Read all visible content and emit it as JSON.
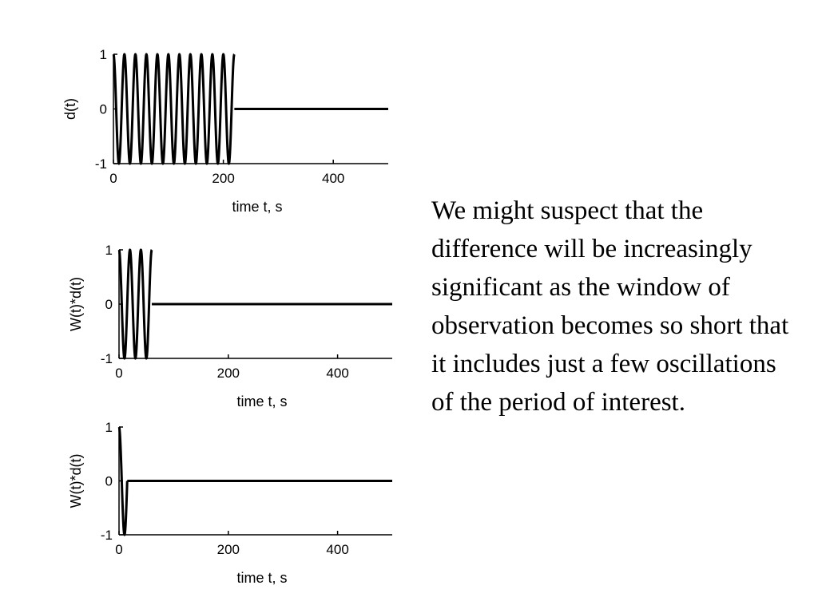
{
  "chart_data": [
    {
      "type": "line",
      "title": "",
      "xlabel": "time t, s",
      "ylabel": "d(t)",
      "xlim": [
        0,
        500
      ],
      "ylim": [
        -1,
        1
      ],
      "xticks": [
        0,
        200,
        400
      ],
      "yticks": [
        -1,
        0,
        1
      ],
      "series": [
        {
          "kind": "cosine",
          "amplitude": 1,
          "period": 20,
          "t_start": 0,
          "t_end": 220
        },
        {
          "kind": "constant",
          "value": 0,
          "t_start": 220,
          "t_end": 500
        }
      ]
    },
    {
      "type": "line",
      "title": "",
      "xlabel": "time t, s",
      "ylabel": "W(t)*d(t)",
      "xlim": [
        0,
        500
      ],
      "ylim": [
        -1,
        1
      ],
      "xticks": [
        0,
        200,
        400
      ],
      "yticks": [
        -1,
        0,
        1
      ],
      "series": [
        {
          "kind": "cosine",
          "amplitude": 1,
          "period": 20,
          "t_start": 0,
          "t_end": 60
        },
        {
          "kind": "constant",
          "value": 0,
          "t_start": 60,
          "t_end": 500
        }
      ]
    },
    {
      "type": "line",
      "title": "",
      "xlabel": "time t, s",
      "ylabel": "W(t)*d(t)",
      "xlim": [
        0,
        500
      ],
      "ylim": [
        -1,
        1
      ],
      "xticks": [
        0,
        200,
        400
      ],
      "yticks": [
        -1,
        0,
        1
      ],
      "series": [
        {
          "kind": "cosine",
          "amplitude": 1,
          "period": 20,
          "t_start": 0,
          "t_end": 15
        },
        {
          "kind": "constant",
          "value": 0,
          "t_start": 15,
          "t_end": 500
        }
      ]
    }
  ],
  "text": {
    "paragraph": "We might suspect that the difference will be increasingly significant as the window of observation becomes so short that it includes just a few oscillations of the period of interest."
  },
  "colors": {
    "line": "#000000",
    "background": "#ffffff"
  }
}
